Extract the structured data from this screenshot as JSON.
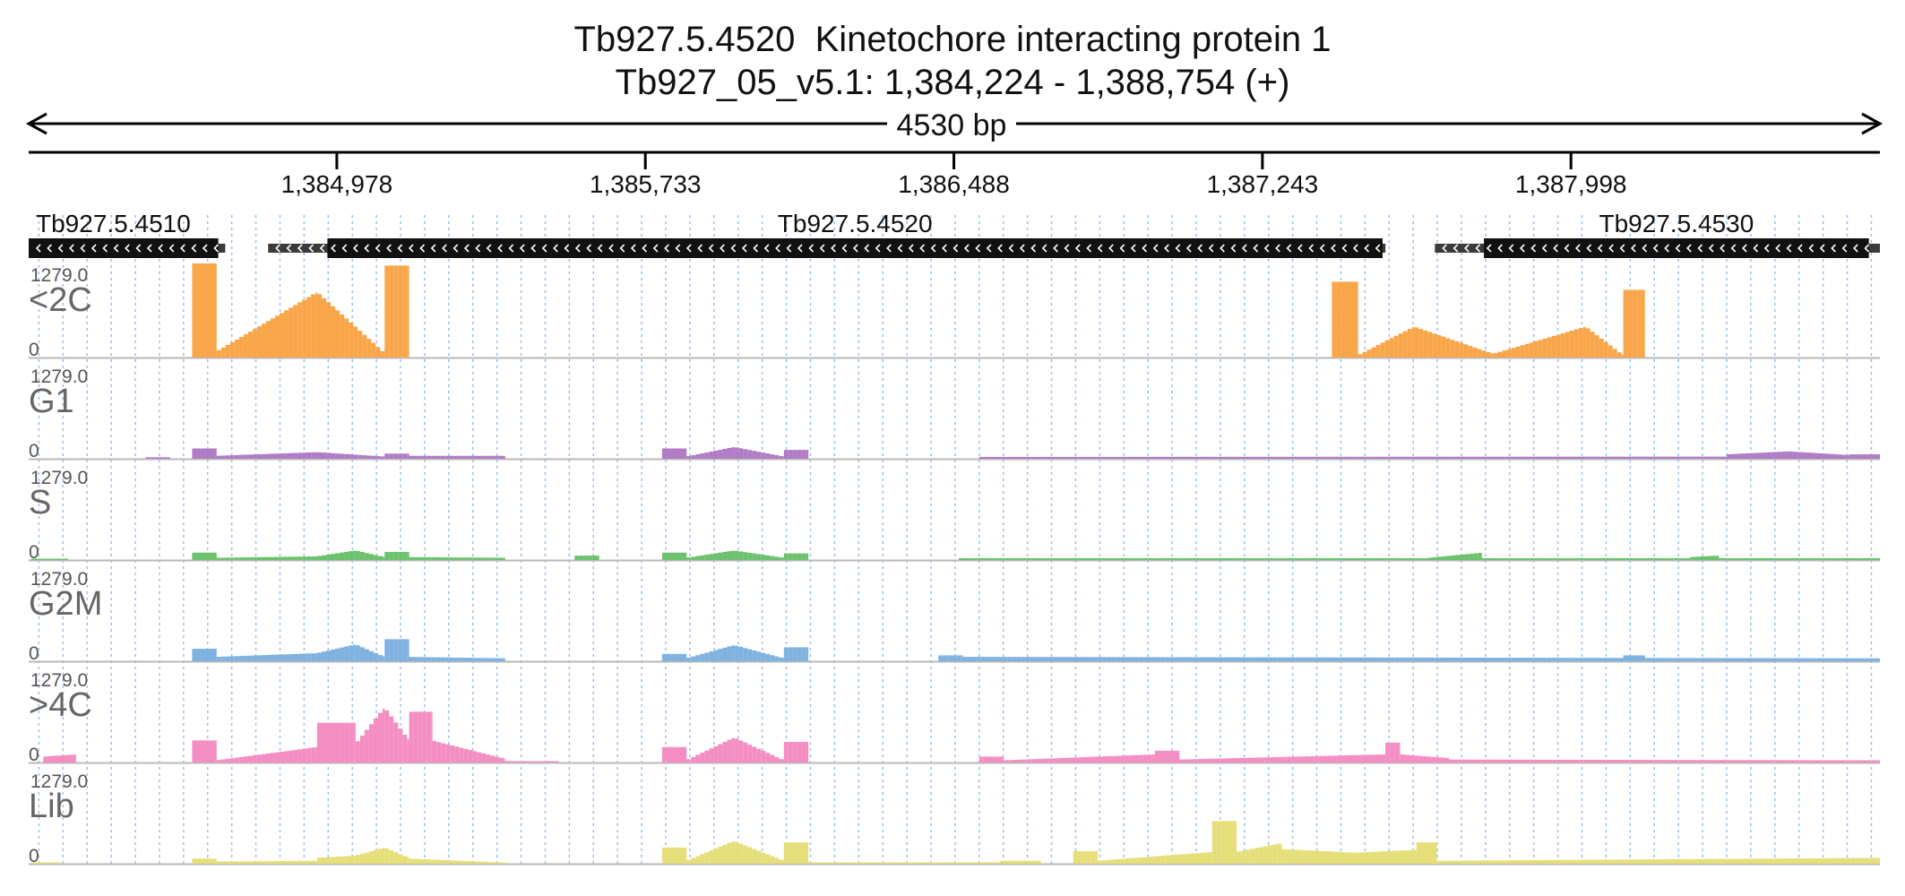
{
  "title_line1": "Tb927.5.4520  Kinetochore interacting protein 1",
  "title_line2": "Tb927_05_v5.1: 1,384,224 - 1,388,754 (+)",
  "span_label": "4530 bp",
  "chart_data": {
    "type": "bar",
    "region": {
      "chrom": "Tb927_05_v5.1",
      "start": 1384224,
      "end": 1388754,
      "strand": "+"
    },
    "x_ticks": [
      "1,384,978",
      "1,385,733",
      "1,386,488",
      "1,387,243",
      "1,387,998"
    ],
    "x_tick_values": [
      1384978,
      1385733,
      1386488,
      1387243,
      1387998
    ],
    "genes": [
      {
        "name": "Tb927.5.4510",
        "start": 1384224,
        "end": 1384705,
        "cds_start": 1384224,
        "cds_end": 1384688,
        "strand": "-"
      },
      {
        "name": "Tb927.5.4520",
        "start": 1384810,
        "end": 1387544,
        "cds_start": 1384955,
        "cds_end": 1387537,
        "strand": "-"
      },
      {
        "name": "Tb927.5.4530",
        "start": 1387665,
        "end": 1388754,
        "cds_start": 1387785,
        "cds_end": 1388727,
        "strand": "-"
      }
    ],
    "ylim": [
      0,
      1279.0
    ],
    "y_max_label": "1279.0",
    "y_min_label": "0",
    "tracks": [
      {
        "name": "<2C",
        "color": "#f9a64a",
        "segments": [
          {
            "start": 1384624,
            "end": 1384684,
            "v0": 1279,
            "v1": 1279
          },
          {
            "start": 1384684,
            "end": 1384930,
            "v0": 80,
            "v1": 890
          },
          {
            "start": 1384930,
            "end": 1385095,
            "v0": 890,
            "v1": 60
          },
          {
            "start": 1385095,
            "end": 1385155,
            "v0": 1250,
            "v1": 1250
          },
          {
            "start": 1387413,
            "end": 1387477,
            "v0": 1030,
            "v1": 1030
          },
          {
            "start": 1387477,
            "end": 1387614,
            "v0": 30,
            "v1": 420
          },
          {
            "start": 1387614,
            "end": 1387808,
            "v0": 420,
            "v1": 50
          },
          {
            "start": 1387808,
            "end": 1388034,
            "v0": 50,
            "v1": 420
          },
          {
            "start": 1388034,
            "end": 1388126,
            "v0": 420,
            "v1": 30
          },
          {
            "start": 1388126,
            "end": 1388179,
            "v0": 920,
            "v1": 920
          }
        ]
      },
      {
        "name": "G1",
        "color": "#b07cc6",
        "segments": [
          {
            "start": 1384510,
            "end": 1384570,
            "v0": 20,
            "v1": 20
          },
          {
            "start": 1384624,
            "end": 1384684,
            "v0": 140,
            "v1": 140
          },
          {
            "start": 1384684,
            "end": 1384930,
            "v0": 40,
            "v1": 90
          },
          {
            "start": 1384930,
            "end": 1385095,
            "v0": 90,
            "v1": 30
          },
          {
            "start": 1385095,
            "end": 1385155,
            "v0": 70,
            "v1": 70
          },
          {
            "start": 1385155,
            "end": 1385390,
            "v0": 40,
            "v1": 40
          },
          {
            "start": 1385774,
            "end": 1385834,
            "v0": 140,
            "v1": 140
          },
          {
            "start": 1385834,
            "end": 1385950,
            "v0": 30,
            "v1": 160
          },
          {
            "start": 1385950,
            "end": 1386072,
            "v0": 160,
            "v1": 30
          },
          {
            "start": 1386072,
            "end": 1386132,
            "v0": 120,
            "v1": 120
          },
          {
            "start": 1386550,
            "end": 1388754,
            "v0": 25,
            "v1": 30
          },
          {
            "start": 1388380,
            "end": 1388530,
            "v0": 60,
            "v1": 100
          },
          {
            "start": 1388530,
            "end": 1388680,
            "v0": 100,
            "v1": 50
          },
          {
            "start": 1388680,
            "end": 1388754,
            "v0": 60,
            "v1": 60
          }
        ]
      },
      {
        "name": "S",
        "color": "#6cc26c",
        "segments": [
          {
            "start": 1384230,
            "end": 1384320,
            "v0": 15,
            "v1": 15
          },
          {
            "start": 1384624,
            "end": 1384684,
            "v0": 100,
            "v1": 100
          },
          {
            "start": 1384684,
            "end": 1384930,
            "v0": 30,
            "v1": 50
          },
          {
            "start": 1384930,
            "end": 1385024,
            "v0": 50,
            "v1": 130
          },
          {
            "start": 1385024,
            "end": 1385095,
            "v0": 130,
            "v1": 40
          },
          {
            "start": 1385095,
            "end": 1385155,
            "v0": 110,
            "v1": 110
          },
          {
            "start": 1385155,
            "end": 1385390,
            "v0": 40,
            "v1": 30
          },
          {
            "start": 1385560,
            "end": 1385620,
            "v0": 60,
            "v1": 60
          },
          {
            "start": 1385774,
            "end": 1385834,
            "v0": 100,
            "v1": 100
          },
          {
            "start": 1385834,
            "end": 1385950,
            "v0": 30,
            "v1": 130
          },
          {
            "start": 1385950,
            "end": 1386072,
            "v0": 130,
            "v1": 30
          },
          {
            "start": 1386072,
            "end": 1386132,
            "v0": 90,
            "v1": 90
          },
          {
            "start": 1386500,
            "end": 1388754,
            "v0": 25,
            "v1": 25
          },
          {
            "start": 1387650,
            "end": 1387780,
            "v0": 30,
            "v1": 100
          },
          {
            "start": 1388290,
            "end": 1388360,
            "v0": 40,
            "v1": 60
          }
        ]
      },
      {
        "name": "G2M",
        "color": "#7fb2e0",
        "segments": [
          {
            "start": 1384624,
            "end": 1384684,
            "v0": 170,
            "v1": 170
          },
          {
            "start": 1384684,
            "end": 1384930,
            "v0": 60,
            "v1": 110
          },
          {
            "start": 1384930,
            "end": 1385024,
            "v0": 110,
            "v1": 230
          },
          {
            "start": 1385024,
            "end": 1385095,
            "v0": 230,
            "v1": 60
          },
          {
            "start": 1385095,
            "end": 1385155,
            "v0": 300,
            "v1": 300
          },
          {
            "start": 1385155,
            "end": 1385390,
            "v0": 60,
            "v1": 40
          },
          {
            "start": 1385774,
            "end": 1385834,
            "v0": 100,
            "v1": 100
          },
          {
            "start": 1385834,
            "end": 1385950,
            "v0": 40,
            "v1": 220
          },
          {
            "start": 1385950,
            "end": 1386072,
            "v0": 220,
            "v1": 40
          },
          {
            "start": 1386072,
            "end": 1386132,
            "v0": 190,
            "v1": 190
          },
          {
            "start": 1386450,
            "end": 1386510,
            "v0": 80,
            "v1": 80
          },
          {
            "start": 1386510,
            "end": 1388754,
            "v0": 60,
            "v1": 40
          },
          {
            "start": 1388126,
            "end": 1388179,
            "v0": 80,
            "v1": 80
          }
        ]
      },
      {
        "name": ">4C",
        "color": "#f48ec2",
        "segments": [
          {
            "start": 1384260,
            "end": 1384340,
            "v0": 80,
            "v1": 110
          },
          {
            "start": 1384624,
            "end": 1384684,
            "v0": 300,
            "v1": 300
          },
          {
            "start": 1384684,
            "end": 1384930,
            "v0": 30,
            "v1": 210
          },
          {
            "start": 1384930,
            "end": 1385024,
            "v0": 540,
            "v1": 540
          },
          {
            "start": 1385024,
            "end": 1385095,
            "v0": 250,
            "v1": 750
          },
          {
            "start": 1385095,
            "end": 1385155,
            "v0": 750,
            "v1": 300
          },
          {
            "start": 1385155,
            "end": 1385211,
            "v0": 690,
            "v1": 690
          },
          {
            "start": 1385211,
            "end": 1385390,
            "v0": 300,
            "v1": 50
          },
          {
            "start": 1385390,
            "end": 1385520,
            "v0": 20,
            "v1": 15
          },
          {
            "start": 1385774,
            "end": 1385834,
            "v0": 210,
            "v1": 210
          },
          {
            "start": 1385834,
            "end": 1385950,
            "v0": 30,
            "v1": 340
          },
          {
            "start": 1385950,
            "end": 1386072,
            "v0": 340,
            "v1": 30
          },
          {
            "start": 1386072,
            "end": 1386132,
            "v0": 280,
            "v1": 280
          },
          {
            "start": 1386550,
            "end": 1386610,
            "v0": 80,
            "v1": 80
          },
          {
            "start": 1386610,
            "end": 1386980,
            "v0": 30,
            "v1": 110
          },
          {
            "start": 1386980,
            "end": 1387040,
            "v0": 160,
            "v1": 160
          },
          {
            "start": 1387040,
            "end": 1387544,
            "v0": 40,
            "v1": 110
          },
          {
            "start": 1387544,
            "end": 1387580,
            "v0": 270,
            "v1": 270
          },
          {
            "start": 1387580,
            "end": 1387700,
            "v0": 110,
            "v1": 60
          },
          {
            "start": 1387700,
            "end": 1388754,
            "v0": 40,
            "v1": 30
          }
        ]
      },
      {
        "name": "Lib",
        "color": "#e6de78",
        "segments": [
          {
            "start": 1384230,
            "end": 1384300,
            "v0": 15,
            "v1": 15
          },
          {
            "start": 1384624,
            "end": 1384684,
            "v0": 70,
            "v1": 70
          },
          {
            "start": 1384684,
            "end": 1384930,
            "v0": 30,
            "v1": 40
          },
          {
            "start": 1384930,
            "end": 1385024,
            "v0": 80,
            "v1": 110
          },
          {
            "start": 1385024,
            "end": 1385095,
            "v0": 110,
            "v1": 220
          },
          {
            "start": 1385095,
            "end": 1385155,
            "v0": 220,
            "v1": 80
          },
          {
            "start": 1385155,
            "end": 1385390,
            "v0": 70,
            "v1": 15
          },
          {
            "start": 1385774,
            "end": 1385834,
            "v0": 220,
            "v1": 220
          },
          {
            "start": 1385834,
            "end": 1385950,
            "v0": 40,
            "v1": 310
          },
          {
            "start": 1385950,
            "end": 1386072,
            "v0": 310,
            "v1": 40
          },
          {
            "start": 1386072,
            "end": 1386132,
            "v0": 290,
            "v1": 290
          },
          {
            "start": 1386132,
            "end": 1386600,
            "v0": 15,
            "v1": 20
          },
          {
            "start": 1386600,
            "end": 1386700,
            "v0": 40,
            "v1": 40
          },
          {
            "start": 1386780,
            "end": 1386840,
            "v0": 170,
            "v1": 170
          },
          {
            "start": 1386840,
            "end": 1387120,
            "v0": 40,
            "v1": 160
          },
          {
            "start": 1387120,
            "end": 1387180,
            "v0": 580,
            "v1": 580
          },
          {
            "start": 1387180,
            "end": 1387290,
            "v0": 160,
            "v1": 280
          },
          {
            "start": 1387290,
            "end": 1387470,
            "v0": 200,
            "v1": 150
          },
          {
            "start": 1387470,
            "end": 1387620,
            "v0": 150,
            "v1": 190
          },
          {
            "start": 1387620,
            "end": 1387670,
            "v0": 290,
            "v1": 290
          },
          {
            "start": 1387670,
            "end": 1388754,
            "v0": 40,
            "v1": 80
          }
        ]
      }
    ]
  }
}
